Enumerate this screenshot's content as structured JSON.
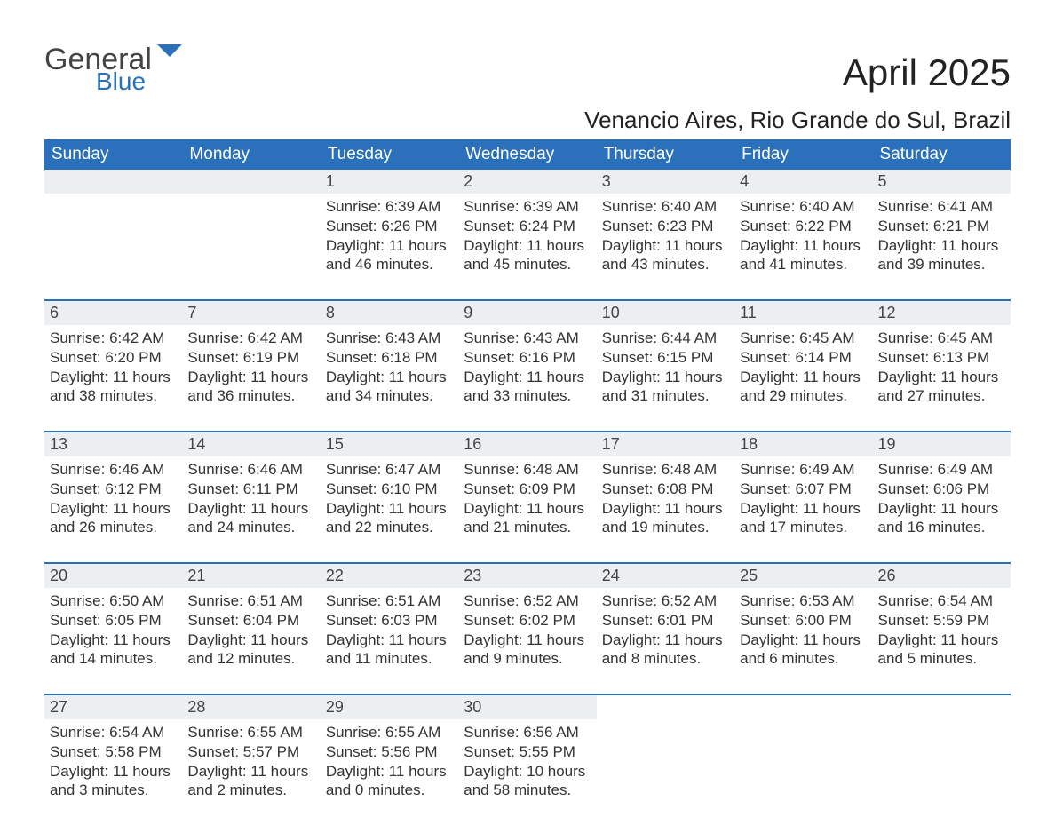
{
  "logo": {
    "general": "General",
    "blue": "Blue"
  },
  "title": "April 2025",
  "subtitle": "Venancio Aires, Rio Grande do Sul, Brazil",
  "colors": {
    "header_bg": "#2a70bb",
    "header_fg": "#ffffff",
    "daynum_bg": "#eceff1",
    "rule": "#2a70bb",
    "text": "#222222",
    "logo_blue": "#2a70bb",
    "logo_gray": "#444444",
    "page_bg": "#ffffff"
  },
  "daysOfWeek": [
    "Sunday",
    "Monday",
    "Tuesday",
    "Wednesday",
    "Thursday",
    "Friday",
    "Saturday"
  ],
  "weeks": [
    [
      {},
      {},
      {
        "n": "1",
        "sr": "6:39 AM",
        "ss": "6:26 PM",
        "dl": "11 hours and 46 minutes."
      },
      {
        "n": "2",
        "sr": "6:39 AM",
        "ss": "6:24 PM",
        "dl": "11 hours and 45 minutes."
      },
      {
        "n": "3",
        "sr": "6:40 AM",
        "ss": "6:23 PM",
        "dl": "11 hours and 43 minutes."
      },
      {
        "n": "4",
        "sr": "6:40 AM",
        "ss": "6:22 PM",
        "dl": "11 hours and 41 minutes."
      },
      {
        "n": "5",
        "sr": "6:41 AM",
        "ss": "6:21 PM",
        "dl": "11 hours and 39 minutes."
      }
    ],
    [
      {
        "n": "6",
        "sr": "6:42 AM",
        "ss": "6:20 PM",
        "dl": "11 hours and 38 minutes."
      },
      {
        "n": "7",
        "sr": "6:42 AM",
        "ss": "6:19 PM",
        "dl": "11 hours and 36 minutes."
      },
      {
        "n": "8",
        "sr": "6:43 AM",
        "ss": "6:18 PM",
        "dl": "11 hours and 34 minutes."
      },
      {
        "n": "9",
        "sr": "6:43 AM",
        "ss": "6:16 PM",
        "dl": "11 hours and 33 minutes."
      },
      {
        "n": "10",
        "sr": "6:44 AM",
        "ss": "6:15 PM",
        "dl": "11 hours and 31 minutes."
      },
      {
        "n": "11",
        "sr": "6:45 AM",
        "ss": "6:14 PM",
        "dl": "11 hours and 29 minutes."
      },
      {
        "n": "12",
        "sr": "6:45 AM",
        "ss": "6:13 PM",
        "dl": "11 hours and 27 minutes."
      }
    ],
    [
      {
        "n": "13",
        "sr": "6:46 AM",
        "ss": "6:12 PM",
        "dl": "11 hours and 26 minutes."
      },
      {
        "n": "14",
        "sr": "6:46 AM",
        "ss": "6:11 PM",
        "dl": "11 hours and 24 minutes."
      },
      {
        "n": "15",
        "sr": "6:47 AM",
        "ss": "6:10 PM",
        "dl": "11 hours and 22 minutes."
      },
      {
        "n": "16",
        "sr": "6:48 AM",
        "ss": "6:09 PM",
        "dl": "11 hours and 21 minutes."
      },
      {
        "n": "17",
        "sr": "6:48 AM",
        "ss": "6:08 PM",
        "dl": "11 hours and 19 minutes."
      },
      {
        "n": "18",
        "sr": "6:49 AM",
        "ss": "6:07 PM",
        "dl": "11 hours and 17 minutes."
      },
      {
        "n": "19",
        "sr": "6:49 AM",
        "ss": "6:06 PM",
        "dl": "11 hours and 16 minutes."
      }
    ],
    [
      {
        "n": "20",
        "sr": "6:50 AM",
        "ss": "6:05 PM",
        "dl": "11 hours and 14 minutes."
      },
      {
        "n": "21",
        "sr": "6:51 AM",
        "ss": "6:04 PM",
        "dl": "11 hours and 12 minutes."
      },
      {
        "n": "22",
        "sr": "6:51 AM",
        "ss": "6:03 PM",
        "dl": "11 hours and 11 minutes."
      },
      {
        "n": "23",
        "sr": "6:52 AM",
        "ss": "6:02 PM",
        "dl": "11 hours and 9 minutes."
      },
      {
        "n": "24",
        "sr": "6:52 AM",
        "ss": "6:01 PM",
        "dl": "11 hours and 8 minutes."
      },
      {
        "n": "25",
        "sr": "6:53 AM",
        "ss": "6:00 PM",
        "dl": "11 hours and 6 minutes."
      },
      {
        "n": "26",
        "sr": "6:54 AM",
        "ss": "5:59 PM",
        "dl": "11 hours and 5 minutes."
      }
    ],
    [
      {
        "n": "27",
        "sr": "6:54 AM",
        "ss": "5:58 PM",
        "dl": "11 hours and 3 minutes."
      },
      {
        "n": "28",
        "sr": "6:55 AM",
        "ss": "5:57 PM",
        "dl": "11 hours and 2 minutes."
      },
      {
        "n": "29",
        "sr": "6:55 AM",
        "ss": "5:56 PM",
        "dl": "11 hours and 0 minutes."
      },
      {
        "n": "30",
        "sr": "6:56 AM",
        "ss": "5:55 PM",
        "dl": "10 hours and 58 minutes."
      },
      {},
      {},
      {}
    ]
  ],
  "labels": {
    "sunrise": "Sunrise: ",
    "sunset": "Sunset: ",
    "daylight": "Daylight: "
  }
}
